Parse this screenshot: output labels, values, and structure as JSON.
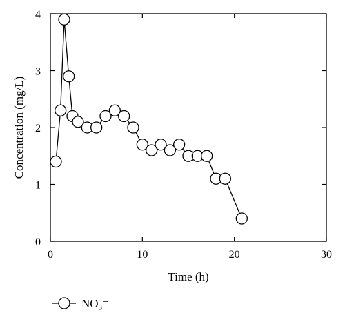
{
  "chart_data": {
    "type": "line",
    "title": "",
    "xlabel": "Time (h)",
    "ylabel": "Concentration (mg/L)",
    "xlim": [
      0,
      30
    ],
    "ylim": [
      0,
      4
    ],
    "xticks": [
      0,
      10,
      20,
      30
    ],
    "yticks": [
      0,
      1,
      2,
      3,
      4
    ],
    "grid": false,
    "legend_position": "bottom-left",
    "series": [
      {
        "name": "NO₃⁻",
        "marker": "open-circle",
        "color": "#000000",
        "points": [
          {
            "x": 0.6,
            "y": 1.4
          },
          {
            "x": 1.1,
            "y": 2.3
          },
          {
            "x": 1.5,
            "y": 3.9
          },
          {
            "x": 2.0,
            "y": 2.9
          },
          {
            "x": 2.4,
            "y": 2.2
          },
          {
            "x": 3.0,
            "y": 2.1
          },
          {
            "x": 4.0,
            "y": 2.0
          },
          {
            "x": 5.0,
            "y": 2.0
          },
          {
            "x": 6.0,
            "y": 2.2
          },
          {
            "x": 7.0,
            "y": 2.3
          },
          {
            "x": 8.0,
            "y": 2.2
          },
          {
            "x": 9.0,
            "y": 2.0
          },
          {
            "x": 10.0,
            "y": 1.7
          },
          {
            "x": 11.0,
            "y": 1.6
          },
          {
            "x": 12.0,
            "y": 1.7
          },
          {
            "x": 13.0,
            "y": 1.6
          },
          {
            "x": 14.0,
            "y": 1.7
          },
          {
            "x": 15.0,
            "y": 1.5
          },
          {
            "x": 16.0,
            "y": 1.5
          },
          {
            "x": 17.0,
            "y": 1.5
          },
          {
            "x": 18.0,
            "y": 1.1
          },
          {
            "x": 19.0,
            "y": 1.1
          },
          {
            "x": 20.8,
            "y": 0.4
          }
        ]
      }
    ]
  }
}
